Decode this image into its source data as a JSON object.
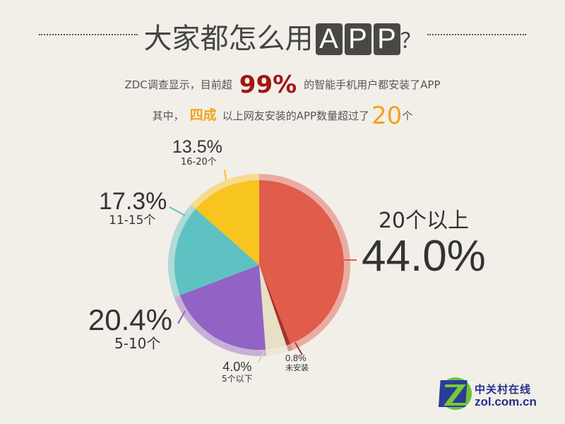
{
  "header": {
    "title_prefix": "大家都怎么用",
    "title_letters": [
      "A",
      "P",
      "P"
    ],
    "title_suffix": "？"
  },
  "subtitle": {
    "line1_pre": "ZDC调查显示，目前超",
    "line1_highlight": "99%",
    "line1_post": "的智能手机用户都安装了APP",
    "line2_pre": "其中，",
    "line2_highlight": "四成",
    "line2_mid": "以上网友安装的APP数量超过了",
    "line2_number": "20",
    "line2_post": "个"
  },
  "chart_data": {
    "type": "pie",
    "start": "top",
    "direction": "clockwise",
    "slices": [
      {
        "label": "20个以上",
        "value": 44.0,
        "display": "44.0%",
        "color": "#e05c4b"
      },
      {
        "label": "未安装",
        "value": 0.8,
        "display": "0.8%",
        "color": "#a5332a"
      },
      {
        "label": "5个以下",
        "value": 4.0,
        "display": "4.0%",
        "color": "#e7e0c4"
      },
      {
        "label": "5-10个",
        "value": 20.4,
        "display": "20.4%",
        "color": "#9163c4"
      },
      {
        "label": "11-15个",
        "value": 17.3,
        "display": "17.3%",
        "color": "#5ec2c2"
      },
      {
        "label": "16-20个",
        "value": 13.5,
        "display": "13.5%",
        "color": "#f8c41f"
      }
    ]
  },
  "logo": {
    "cn": "中关村在线",
    "en": "ZOL.com.cn"
  }
}
